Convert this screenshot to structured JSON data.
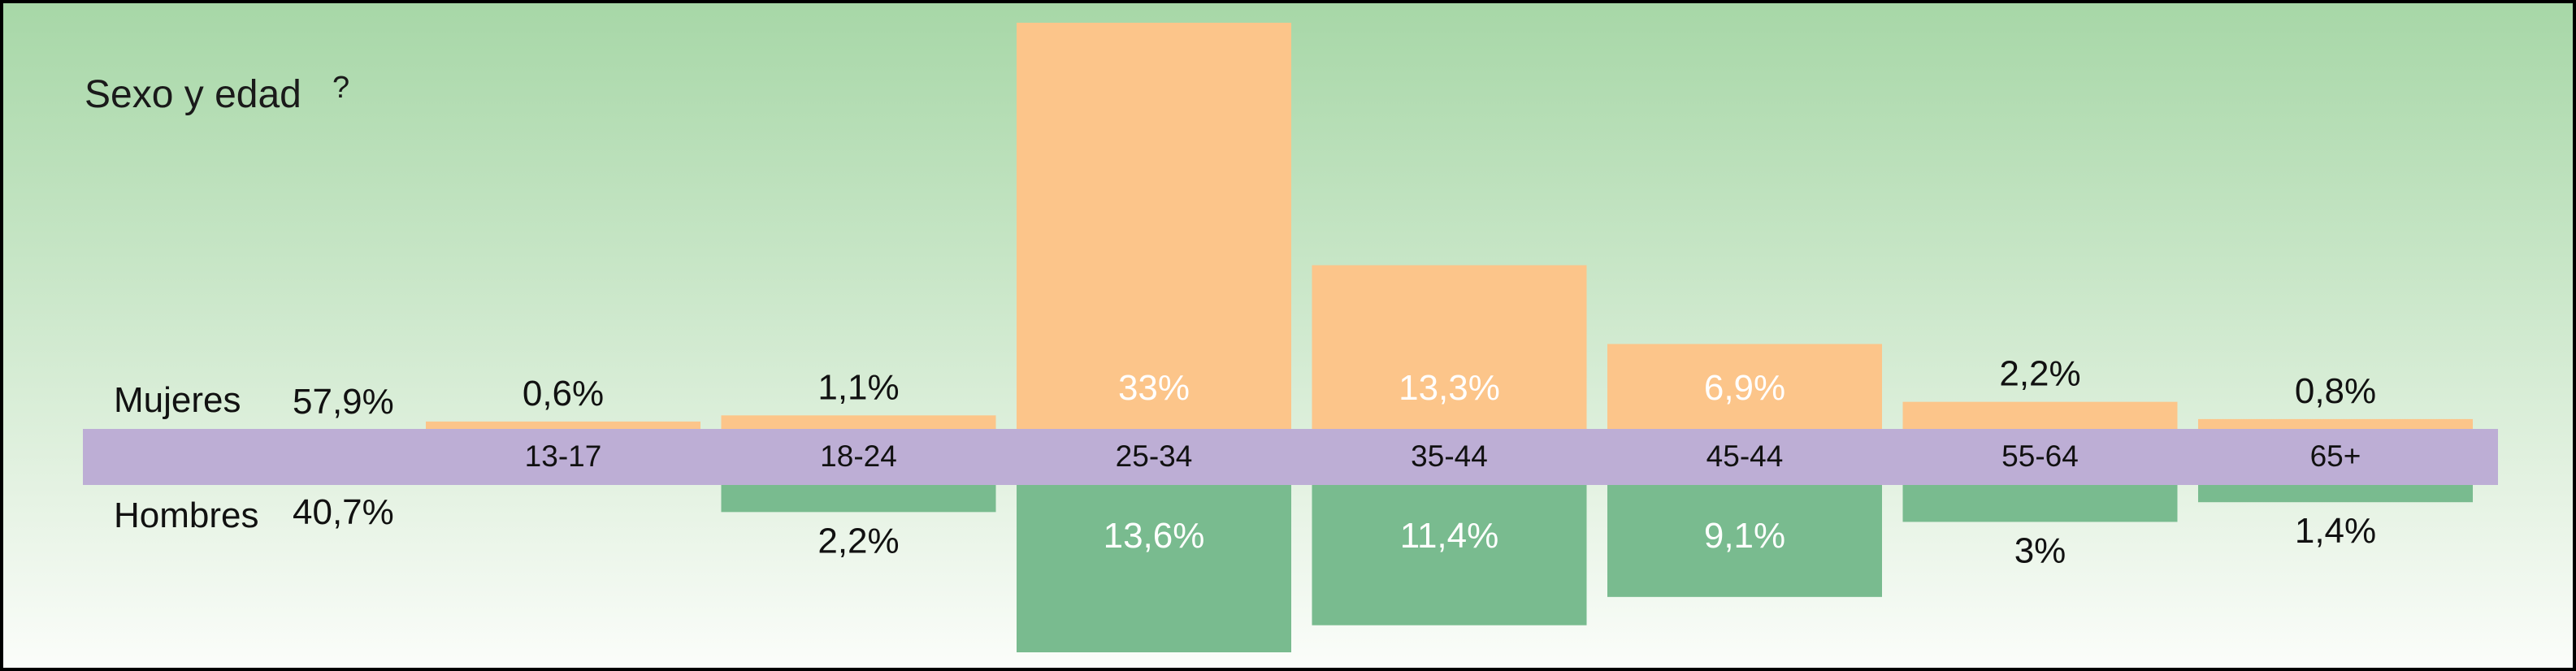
{
  "chart_data": {
    "type": "bar",
    "title": "Sexo y edad",
    "title_mark": "?",
    "categories": [
      "13-17",
      "18-24",
      "25-34",
      "35-44",
      "45-44",
      "55-64",
      "65+"
    ],
    "series": [
      {
        "name": "Mujeres",
        "total": "57,9%",
        "values": [
          0.6,
          1.1,
          33,
          13.3,
          6.9,
          2.2,
          0.8
        ],
        "labels": [
          "0,6%",
          "1,1%",
          "33%",
          "13,3%",
          "6,9%",
          "2,2%",
          "0,8%"
        ]
      },
      {
        "name": "Hombres",
        "total": "40,7%",
        "values": [
          0,
          2.2,
          13.6,
          11.4,
          9.1,
          3,
          1.4
        ],
        "labels": [
          "",
          "2,2%",
          "13,6%",
          "11,4%",
          "9,1%",
          "3%",
          "1,4%"
        ]
      }
    ],
    "layout_style": "butterfly",
    "colors": {
      "mujeres": "#fcc58a",
      "hombres": "#79bb8f",
      "axis_band": "#bdaed5",
      "inside_label": "#ffffff",
      "outside_label": "#111111"
    }
  }
}
